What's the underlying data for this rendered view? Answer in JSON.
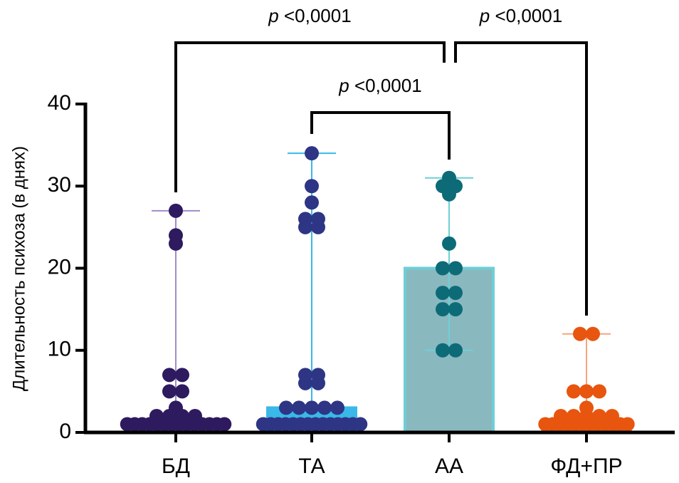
{
  "chart_data": {
    "type": "bar",
    "y_label": "Длительность психоза (в днях)",
    "categories": [
      "БД",
      "ТА",
      "АА",
      "ФД+ПР"
    ],
    "medians": [
      1,
      3,
      20,
      1
    ],
    "mins": [
      1,
      1,
      10,
      1
    ],
    "maxs": [
      27,
      34,
      31,
      12
    ],
    "points": [
      [
        27,
        24,
        23,
        7,
        7,
        5,
        5,
        3,
        2,
        2,
        2,
        2,
        1,
        1,
        1,
        1,
        1,
        1,
        1,
        1,
        1,
        1,
        1,
        1,
        1,
        1
      ],
      [
        34,
        30,
        28,
        26,
        26,
        25,
        25,
        7,
        7,
        6,
        6,
        3,
        3,
        3,
        3,
        3,
        1,
        1,
        1,
        1,
        1,
        1,
        1,
        1,
        1,
        1,
        1,
        1,
        1,
        1
      ],
      [
        31,
        30,
        30,
        29,
        23,
        20,
        20,
        17,
        17,
        15,
        15,
        10,
        10
      ],
      [
        12,
        12,
        5,
        5,
        5,
        3,
        2,
        2,
        2,
        2,
        2,
        1,
        1,
        1,
        1,
        1,
        1,
        1,
        1,
        1,
        1,
        1,
        1
      ]
    ],
    "dot_colors": [
      "#2e1a5e",
      "#2e3585",
      "#0d6b78",
      "#e8550f"
    ],
    "whisker_colors": [
      "#a08cc8",
      "#3ab8e8",
      "#6ecfd6",
      "#f5a57a"
    ],
    "bar_fills": [
      "#7a62b0",
      "#3ab8e8",
      "#8ab8bf",
      "#f08a50"
    ],
    "bar_strokes": [
      "#a08cc8",
      "#3ab8e8",
      "#6ecfd6",
      "#f5a57a"
    ],
    "ylim": [
      0,
      40
    ],
    "yticks": [
      0,
      10,
      20,
      30,
      40
    ],
    "brackets": [
      {
        "pair": [
          "БД",
          "АА"
        ],
        "p": "p",
        "label": "<0,0001"
      },
      {
        "pair": [
          "ФД+ПР",
          "АА"
        ],
        "p": "p",
        "label": "<0,0001"
      },
      {
        "pair": [
          "ТА",
          "АА"
        ],
        "p": "p",
        "label": "<0,0001"
      }
    ]
  }
}
